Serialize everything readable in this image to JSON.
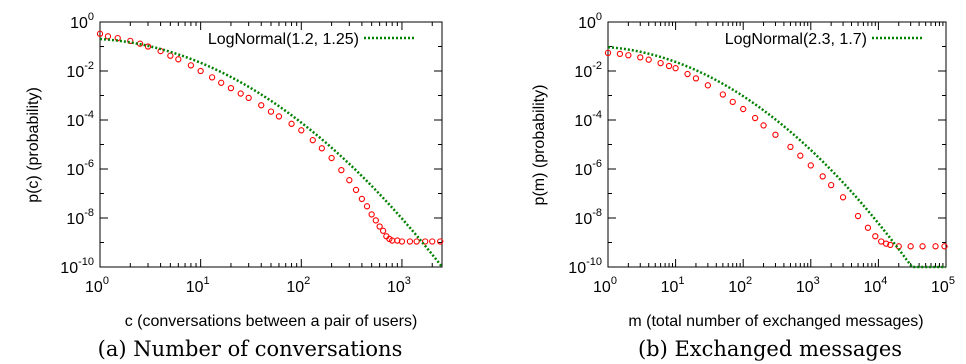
{
  "chart_data": [
    {
      "type": "scatter",
      "caption": "(a) Number of conversations",
      "xlabel": "c (conversations between a pair of users)",
      "ylabel": "p(c) (probability)",
      "x_scale": "log",
      "y_scale": "log",
      "xlim": [
        1,
        2500
      ],
      "ylim": [
        1e-10,
        1
      ],
      "x_tick_base": "10",
      "x_tick_exponents": [
        "0",
        "1",
        "2",
        "3"
      ],
      "y_tick_base": "10",
      "y_tick_exponents": [
        "0",
        "-2",
        "-4",
        "-6",
        "-8",
        "-10"
      ],
      "grid": false,
      "legend_position": "top-right",
      "series": [
        {
          "kind": "empirical",
          "color": "#ff0000",
          "marker": "circle",
          "points": [
            [
              1,
              0.33
            ],
            [
              1.2,
              0.26
            ],
            [
              1.5,
              0.22
            ],
            [
              2,
              0.17
            ],
            [
              2.5,
              0.13
            ],
            [
              3,
              0.1
            ],
            [
              4,
              0.065
            ],
            [
              5,
              0.042
            ],
            [
              6,
              0.03
            ],
            [
              8,
              0.017
            ],
            [
              10,
              0.01
            ],
            [
              13,
              0.0055
            ],
            [
              16,
              0.0033
            ],
            [
              20,
              0.002
            ],
            [
              25,
              0.0012
            ],
            [
              30,
              0.0008
            ],
            [
              40,
              0.0004
            ],
            [
              50,
              0.00022
            ],
            [
              60,
              0.00014
            ],
            [
              80,
              7e-05
            ],
            [
              100,
              3.8e-05
            ],
            [
              130,
              1.5e-05
            ],
            [
              160,
              7e-06
            ],
            [
              200,
              2.8e-06
            ],
            [
              250,
              9e-07
            ],
            [
              300,
              3.5e-07
            ],
            [
              350,
              1.4e-07
            ],
            [
              400,
              6e-08
            ],
            [
              450,
              3e-08
            ],
            [
              500,
              1.4e-08
            ],
            [
              550,
              8e-09
            ],
            [
              600,
              4.5e-09
            ],
            [
              650,
              3e-09
            ],
            [
              700,
              1.8e-09
            ],
            [
              750,
              1.4e-09
            ],
            [
              800,
              1.2e-09
            ],
            [
              900,
              1.2e-09
            ],
            [
              1000,
              1.1e-09
            ],
            [
              1200,
              1.1e-09
            ],
            [
              1400,
              1.1e-09
            ],
            [
              1700,
              1.1e-09
            ],
            [
              2000,
              1.1e-09
            ],
            [
              2400,
              1.1e-09
            ]
          ]
        },
        {
          "kind": "fit",
          "name": "LogNormal(1.2, 1.25)",
          "color": "#008000",
          "style": "dotted",
          "mu": 1.2,
          "sigma": 1.25
        }
      ]
    },
    {
      "type": "scatter",
      "caption": "(b) Exchanged messages",
      "xlabel": "m (total number of exchanged messages)",
      "ylabel": "p(m) (probability)",
      "x_scale": "log",
      "y_scale": "log",
      "xlim": [
        1,
        100000
      ],
      "ylim": [
        1e-10,
        1
      ],
      "x_tick_base": "10",
      "x_tick_exponents": [
        "0",
        "1",
        "2",
        "3",
        "4",
        "5"
      ],
      "y_tick_base": "10",
      "y_tick_exponents": [
        "0",
        "-2",
        "-4",
        "-6",
        "-8",
        "-10"
      ],
      "grid": false,
      "legend_position": "top-right",
      "series": [
        {
          "kind": "empirical",
          "color": "#ff0000",
          "marker": "circle",
          "points": [
            [
              1,
              0.055
            ],
            [
              1.5,
              0.05
            ],
            [
              2,
              0.044
            ],
            [
              3,
              0.036
            ],
            [
              4,
              0.029
            ],
            [
              6,
              0.021
            ],
            [
              8,
              0.016
            ],
            [
              10,
              0.013
            ],
            [
              15,
              0.0075
            ],
            [
              20,
              0.005
            ],
            [
              30,
              0.0026
            ],
            [
              50,
              0.0011
            ],
            [
              70,
              0.00055
            ],
            [
              100,
              0.00028
            ],
            [
              150,
              0.00012
            ],
            [
              200,
              6e-05
            ],
            [
              300,
              2.5e-05
            ],
            [
              500,
              8e-06
            ],
            [
              700,
              3.5e-06
            ],
            [
              1000,
              1.4e-06
            ],
            [
              1500,
              5e-07
            ],
            [
              2000,
              2.2e-07
            ],
            [
              3000,
              7e-08
            ],
            [
              5000,
              1.2e-08
            ],
            [
              7000,
              4e-09
            ],
            [
              9000,
              1.8e-09
            ],
            [
              11000,
              1.1e-09
            ],
            [
              13000,
              9e-10
            ],
            [
              15000,
              8e-10
            ],
            [
              20000,
              7e-10
            ],
            [
              30000,
              7e-10
            ],
            [
              45000,
              7e-10
            ],
            [
              70000,
              7e-10
            ],
            [
              95000,
              7e-10
            ]
          ]
        },
        {
          "kind": "fit",
          "name": "LogNormal(2.3, 1.7)",
          "color": "#008000",
          "style": "dotted",
          "mu": 2.3,
          "sigma": 1.7
        }
      ]
    }
  ]
}
